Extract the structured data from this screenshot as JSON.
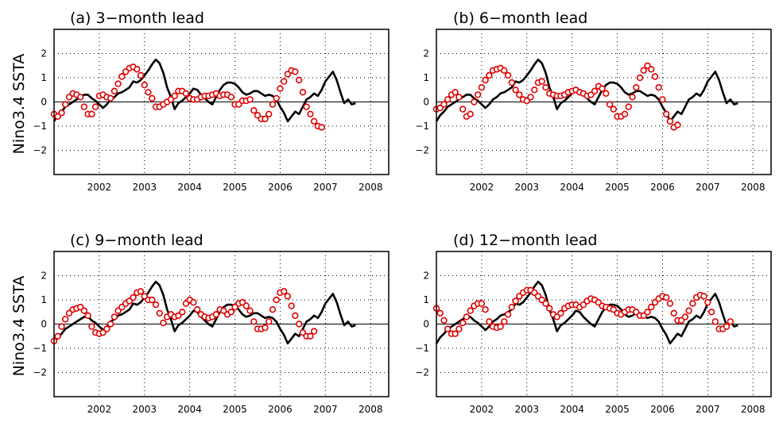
{
  "figure": {
    "ylabel": "Nino3.4 SSTA"
  },
  "chart_data": [
    {
      "type": "line",
      "title": "(a) 3−month lead",
      "ylabel": "Nino3.4 SSTA",
      "xlim": [
        2001.0,
        2008.4
      ],
      "ylim": [
        -3,
        3
      ],
      "xticks": [
        2002,
        2003,
        2004,
        2005,
        2006,
        2007,
        2008
      ],
      "xtick_labels": [
        "2002",
        "2003",
        "2004",
        "2005",
        "2006",
        "2007",
        "2008"
      ],
      "yticks": [
        -2,
        -1,
        0,
        1,
        2
      ],
      "ytick_labels": [
        "−2",
        "−1",
        "0",
        "1",
        "2"
      ],
      "grid": "dotted",
      "series": [
        {
          "style": "black-solid-line",
          "color": "#000000",
          "x_start": 2001.0,
          "step": 0.08333,
          "values": [
            -0.8,
            -0.55,
            -0.4,
            -0.2,
            -0.1,
            0,
            0.1,
            0.2,
            0.3,
            0.3,
            0.15,
            0.05,
            -0.1,
            -0.25,
            -0.1,
            0.1,
            0.2,
            0.35,
            0.4,
            0.5,
            0.6,
            0.85,
            0.8,
            0.9,
            1.1,
            1.3,
            1.55,
            1.75,
            1.6,
            1.2,
            0.6,
            0.2,
            -0.3,
            -0.05,
            0.05,
            0.2,
            0.35,
            0.55,
            0.5,
            0.3,
            0.15,
            0,
            -0.1,
            0.2,
            0.5,
            0.7,
            0.8,
            0.8,
            0.75,
            0.6,
            0.4,
            0.3,
            0.35,
            0.45,
            0.45,
            0.35,
            0.25,
            0.3,
            0.25,
            0.1,
            -0.2,
            -0.45,
            -0.8,
            -0.6,
            -0.4,
            -0.5,
            -0.2,
            0.1,
            0.2,
            0.35,
            0.25,
            0.5,
            0.85,
            1.05,
            1.25,
            0.9,
            0.4,
            -0.05,
            0.1,
            -0.1,
            -0.05
          ]
        },
        {
          "style": "red-open-circles",
          "color": "#e00000",
          "x_start": 2001.0,
          "step": 0.08333,
          "values": [
            -0.5,
            -0.6,
            -0.45,
            -0.1,
            0.2,
            0.35,
            0.3,
            0.2,
            -0.2,
            -0.5,
            -0.5,
            -0.2,
            0.25,
            0.3,
            0.2,
            0.15,
            0.45,
            0.75,
            1.05,
            1.25,
            1.4,
            1.45,
            1.35,
            1.1,
            0.7,
            0.4,
            0.15,
            -0.2,
            -0.2,
            -0.1,
            0,
            0.1,
            0.25,
            0.45,
            0.45,
            0.35,
            0.15,
            0.1,
            0.1,
            0.2,
            0.25,
            0.25,
            0.3,
            0.35,
            0.25,
            0.3,
            0.3,
            0.2,
            -0.1,
            -0.1,
            0.05,
            0.05,
            0.1,
            -0.35,
            -0.55,
            -0.7,
            -0.7,
            -0.5,
            -0.1,
            0.15,
            0.55,
            0.85,
            1.15,
            1.3,
            1.25,
            0.9,
            0.4,
            -0.2,
            -0.5,
            -0.8,
            -1.0,
            -1.05
          ]
        }
      ]
    },
    {
      "type": "line",
      "title": "(b) 6−month lead",
      "xlim": [
        2001.0,
        2008.4
      ],
      "ylim": [
        -3,
        3
      ],
      "xticks": [
        2002,
        2003,
        2004,
        2005,
        2006,
        2007,
        2008
      ],
      "xtick_labels": [
        "2002",
        "2003",
        "2004",
        "2005",
        "2006",
        "2007",
        "2008"
      ],
      "yticks": [
        -2,
        -1,
        0,
        1,
        2
      ],
      "ytick_labels": [
        "−2",
        "−1",
        "0",
        "1",
        "2"
      ],
      "grid": "dotted",
      "series": [
        {
          "style": "black-solid-line",
          "color": "#000000",
          "x_start": 2001.0,
          "step": 0.08333,
          "values": [
            -0.8,
            -0.55,
            -0.4,
            -0.2,
            -0.1,
            0,
            0.1,
            0.2,
            0.3,
            0.3,
            0.15,
            0.05,
            -0.1,
            -0.25,
            -0.1,
            0.1,
            0.2,
            0.35,
            0.4,
            0.5,
            0.6,
            0.85,
            0.8,
            0.9,
            1.1,
            1.3,
            1.55,
            1.75,
            1.6,
            1.2,
            0.6,
            0.2,
            -0.3,
            -0.05,
            0.05,
            0.2,
            0.35,
            0.55,
            0.5,
            0.3,
            0.15,
            0,
            -0.1,
            0.2,
            0.5,
            0.7,
            0.8,
            0.8,
            0.75,
            0.6,
            0.4,
            0.3,
            0.35,
            0.45,
            0.45,
            0.35,
            0.25,
            0.3,
            0.25,
            0.1,
            -0.2,
            -0.45,
            -0.8,
            -0.6,
            -0.4,
            -0.5,
            -0.2,
            0.1,
            0.2,
            0.35,
            0.25,
            0.5,
            0.85,
            1.05,
            1.25,
            0.9,
            0.4,
            -0.05,
            0.1,
            -0.1,
            -0.05
          ]
        },
        {
          "style": "red-open-circles",
          "color": "#e00000",
          "x_start": 2001.0,
          "step": 0.08333,
          "values": [
            -0.3,
            -0.25,
            -0.1,
            0.1,
            0.3,
            0.4,
            0.2,
            -0.3,
            -0.6,
            -0.5,
            0,
            0.3,
            0.6,
            0.9,
            1.1,
            1.3,
            1.35,
            1.4,
            1.3,
            1.1,
            0.8,
            0.5,
            0.3,
            0.1,
            0.05,
            0.2,
            0.5,
            0.8,
            0.85,
            0.6,
            0.35,
            0.3,
            0.25,
            0.25,
            0.3,
            0.4,
            0.45,
            0.5,
            0.4,
            0.35,
            0.25,
            0.3,
            0.45,
            0.65,
            0.55,
            0.35,
            -0.1,
            -0.3,
            -0.6,
            -0.6,
            -0.5,
            -0.2,
            0.2,
            0.6,
            1.0,
            1.3,
            1.5,
            1.35,
            1.05,
            0.6,
            0.1,
            -0.5,
            -0.8,
            -1.05,
            -0.95
          ]
        }
      ]
    },
    {
      "type": "line",
      "title": "(c) 9−month lead",
      "ylabel": "Nino3.4 SSTA",
      "xlim": [
        2001.0,
        2008.4
      ],
      "ylim": [
        -3,
        3
      ],
      "xticks": [
        2002,
        2003,
        2004,
        2005,
        2006,
        2007,
        2008
      ],
      "xtick_labels": [
        "2002",
        "2003",
        "2004",
        "2005",
        "2006",
        "2007",
        "2008"
      ],
      "yticks": [
        -2,
        -1,
        0,
        1,
        2
      ],
      "ytick_labels": [
        "−2",
        "−1",
        "0",
        "1",
        "2"
      ],
      "grid": "dotted",
      "series": [
        {
          "style": "black-solid-line",
          "color": "#000000",
          "x_start": 2001.0,
          "step": 0.08333,
          "values": [
            -0.8,
            -0.55,
            -0.4,
            -0.2,
            -0.1,
            0,
            0.1,
            0.2,
            0.3,
            0.3,
            0.15,
            0.05,
            -0.1,
            -0.25,
            -0.1,
            0.1,
            0.2,
            0.35,
            0.4,
            0.5,
            0.6,
            0.85,
            0.8,
            0.9,
            1.1,
            1.3,
            1.55,
            1.75,
            1.6,
            1.2,
            0.6,
            0.2,
            -0.3,
            -0.05,
            0.05,
            0.2,
            0.35,
            0.55,
            0.5,
            0.3,
            0.15,
            0,
            -0.1,
            0.2,
            0.5,
            0.7,
            0.8,
            0.8,
            0.75,
            0.6,
            0.4,
            0.3,
            0.35,
            0.45,
            0.45,
            0.35,
            0.25,
            0.3,
            0.25,
            0.1,
            -0.2,
            -0.45,
            -0.8,
            -0.6,
            -0.4,
            -0.5,
            -0.2,
            0.1,
            0.2,
            0.35,
            0.25,
            0.5,
            0.85,
            1.05,
            1.25,
            0.9,
            0.4,
            -0.05,
            0.1,
            -0.1,
            -0.05
          ]
        },
        {
          "style": "red-open-circles",
          "color": "#e00000",
          "x_start": 2001.0,
          "step": 0.08333,
          "values": [
            -0.7,
            -0.5,
            -0.1,
            0.2,
            0.45,
            0.6,
            0.65,
            0.7,
            0.55,
            0.35,
            -0.1,
            -0.35,
            -0.4,
            -0.35,
            -0.2,
            0,
            0.3,
            0.55,
            0.7,
            0.85,
            0.95,
            1.1,
            1.3,
            1.35,
            1.15,
            1.0,
            1.0,
            0.8,
            0.45,
            0.05,
            0.3,
            0.4,
            0.3,
            0.35,
            0.5,
            0.85,
            1.0,
            0.9,
            0.6,
            0.4,
            0.3,
            0.25,
            0.3,
            0.4,
            0.6,
            0.55,
            0.4,
            0.5,
            0.7,
            0.85,
            0.9,
            0.75,
            0.55,
            0.1,
            -0.2,
            -0.2,
            -0.15,
            0.1,
            0.6,
            1.0,
            1.3,
            1.35,
            1.15,
            0.75,
            0.35,
            0,
            -0.35,
            -0.5,
            -0.5,
            -0.3
          ]
        }
      ]
    },
    {
      "type": "line",
      "title": "(d) 12−month lead",
      "xlim": [
        2001.0,
        2008.4
      ],
      "ylim": [
        -3,
        3
      ],
      "xticks": [
        2002,
        2003,
        2004,
        2005,
        2006,
        2007,
        2008
      ],
      "xtick_labels": [
        "2002",
        "2003",
        "2004",
        "2005",
        "2006",
        "2007",
        "2008"
      ],
      "yticks": [
        -2,
        -1,
        0,
        1,
        2
      ],
      "ytick_labels": [
        "−2",
        "−1",
        "0",
        "1",
        "2"
      ],
      "grid": "dotted",
      "series": [
        {
          "style": "black-solid-line",
          "color": "#000000",
          "x_start": 2001.0,
          "step": 0.08333,
          "values": [
            -0.8,
            -0.55,
            -0.4,
            -0.2,
            -0.1,
            0,
            0.1,
            0.2,
            0.3,
            0.3,
            0.15,
            0.05,
            -0.1,
            -0.25,
            -0.1,
            0.1,
            0.2,
            0.35,
            0.4,
            0.5,
            0.6,
            0.85,
            0.8,
            0.9,
            1.1,
            1.3,
            1.55,
            1.75,
            1.6,
            1.2,
            0.6,
            0.2,
            -0.3,
            -0.05,
            0.05,
            0.2,
            0.35,
            0.55,
            0.5,
            0.3,
            0.15,
            0,
            -0.1,
            0.2,
            0.5,
            0.7,
            0.8,
            0.8,
            0.75,
            0.6,
            0.4,
            0.3,
            0.35,
            0.45,
            0.45,
            0.35,
            0.25,
            0.3,
            0.25,
            0.1,
            -0.2,
            -0.45,
            -0.8,
            -0.6,
            -0.4,
            -0.5,
            -0.2,
            0.1,
            0.2,
            0.35,
            0.25,
            0.5,
            0.85,
            1.05,
            1.25,
            0.9,
            0.4,
            -0.05,
            0.1,
            -0.1,
            -0.05
          ]
        },
        {
          "style": "red-open-circles",
          "color": "#e00000",
          "x_start": 2001.0,
          "step": 0.08333,
          "values": [
            0.65,
            0.45,
            0.15,
            -0.2,
            -0.4,
            -0.4,
            -0.2,
            0.05,
            0.3,
            0.55,
            0.75,
            0.85,
            0.85,
            0.6,
            0.1,
            -0.1,
            -0.15,
            -0.1,
            0.1,
            0.4,
            0.7,
            0.95,
            1.15,
            1.3,
            1.4,
            1.4,
            1.3,
            1.15,
            1.0,
            0.85,
            0.65,
            0.4,
            0.3,
            0.45,
            0.65,
            0.75,
            0.8,
            0.8,
            0.7,
            0.8,
            0.95,
            1.05,
            1.0,
            0.9,
            0.75,
            0.7,
            0.65,
            0.6,
            0.45,
            0.4,
            0.5,
            0.6,
            0.6,
            0.5,
            0.35,
            0.35,
            0.5,
            0.7,
            0.9,
            1.05,
            1.15,
            1.1,
            0.85,
            0.45,
            0.15,
            0.15,
            0.3,
            0.55,
            0.85,
            1.1,
            1.2,
            1.15,
            0.9,
            0.5,
            0.1,
            -0.2,
            -0.2,
            -0.1,
            0.1
          ]
        }
      ]
    }
  ]
}
